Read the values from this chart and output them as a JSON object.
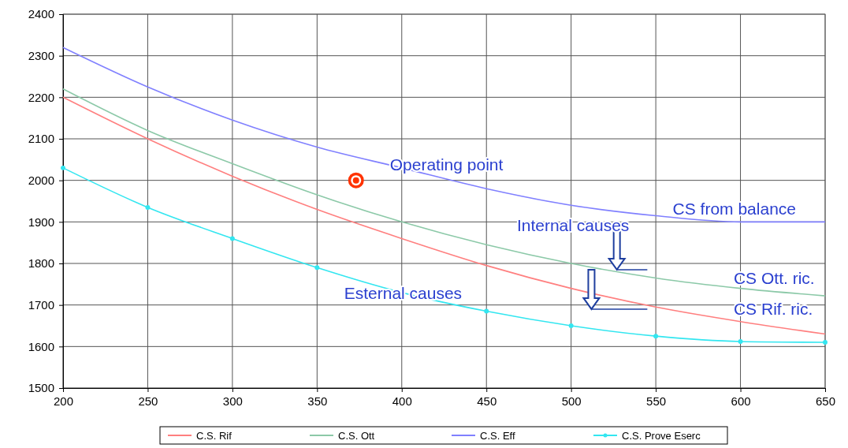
{
  "chart_data": {
    "type": "line",
    "x": [
      200,
      250,
      300,
      350,
      400,
      450,
      500,
      550,
      600,
      650
    ],
    "xlim": [
      200,
      650
    ],
    "xticks": [
      200,
      250,
      300,
      350,
      400,
      450,
      500,
      550,
      600,
      650
    ],
    "ylim": [
      1500,
      2400
    ],
    "yticks": [
      1500,
      1600,
      1700,
      1800,
      1900,
      2000,
      2100,
      2200,
      2300,
      2400
    ],
    "grid": true,
    "legend": "bottom",
    "series": [
      {
        "name": "C.S. Rif",
        "color": "#ff7f7f",
        "values": [
          2200,
          2100,
          2010,
          1930,
          1860,
          1795,
          1740,
          1695,
          1660,
          1630
        ]
      },
      {
        "name": "C.S. Ott",
        "color": "#8cc9a8",
        "values": [
          2220,
          2120,
          2040,
          1965,
          1900,
          1845,
          1800,
          1765,
          1740,
          1722
        ]
      },
      {
        "name": "C.S. Eff",
        "color": "#8080ff",
        "values": [
          2320,
          2225,
          2145,
          2080,
          2030,
          1980,
          1940,
          1915,
          1900,
          1900
        ]
      },
      {
        "name": "C.S. Prove Eserc",
        "color": "#33e6f0",
        "marker": "circle",
        "values": [
          2030,
          1935,
          1860,
          1790,
          1730,
          1685,
          1650,
          1625,
          1612,
          1610
        ]
      },
      {
        "type": "scatter",
        "color": "#ff3300",
        "marker": "circle",
        "x": [
          373
        ],
        "values": [
          2000
        ]
      }
    ],
    "annotations": [
      "Operating point",
      "CS from balance",
      "Internal causes",
      "CS Ott. ric.",
      "Esternal causes",
      "CS Rif. ric."
    ]
  }
}
